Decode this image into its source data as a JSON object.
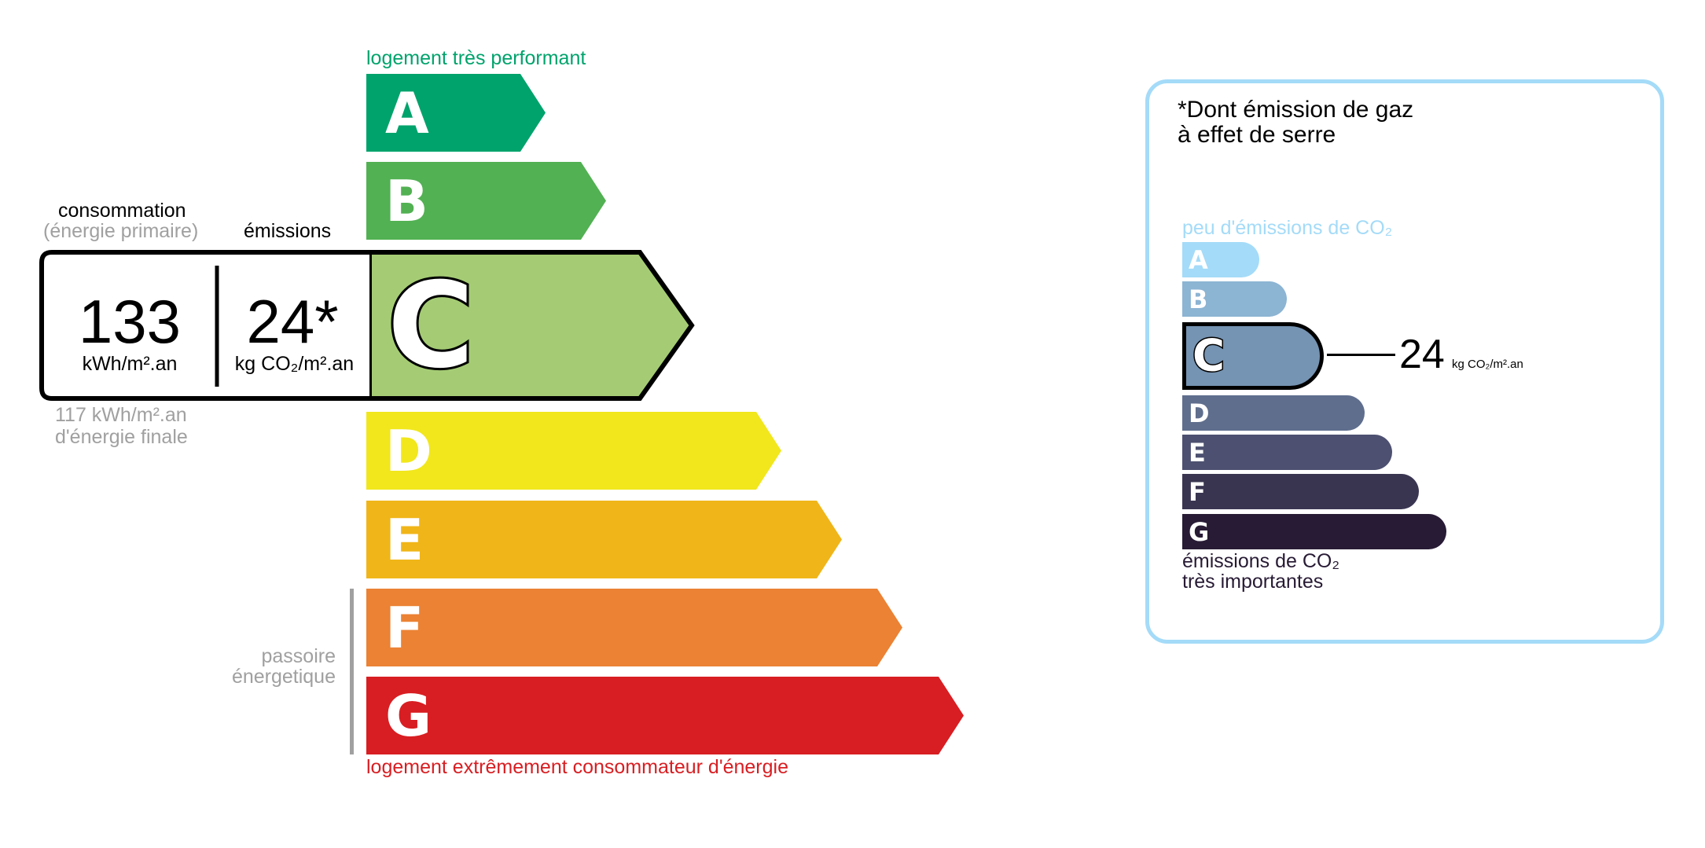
{
  "energy": {
    "top_label": "logement très performant",
    "bottom_label": "logement extrêmement consommateur d'énergie",
    "passoire_label_1": "passoire",
    "passoire_label_2": "énergetique",
    "classes": [
      {
        "letter": "A",
        "color": "#00a36c"
      },
      {
        "letter": "B",
        "color": "#52b153"
      },
      {
        "letter": "C",
        "color": "#a5cc74"
      },
      {
        "letter": "D",
        "color": "#f1e71c"
      },
      {
        "letter": "E",
        "color": "#f0b518"
      },
      {
        "letter": "F",
        "color": "#eb8234"
      },
      {
        "letter": "G",
        "color": "#d81e22"
      }
    ],
    "current_class": "C",
    "consumption_header": "consommation",
    "consumption_subheader": "(énergie primaire)",
    "emissions_header": "émissions",
    "consumption_value": "133",
    "consumption_unit": "kWh/m².an",
    "emissions_value": "24*",
    "emissions_unit": "kg CO₂/m².an",
    "final_energy_value": "117 kWh/m².an",
    "final_energy_label": "d'énergie finale",
    "top_color": "#00a36c",
    "bottom_color": "#d81e22"
  },
  "ghg": {
    "title_1": "*Dont émission de gaz",
    "title_2": "à effet de serre",
    "top_label": "peu d'émissions de CO₂",
    "bottom_label_1": "émissions de CO₂",
    "bottom_label_2": "très importantes",
    "classes": [
      {
        "letter": "A",
        "color": "#a4dbf8"
      },
      {
        "letter": "B",
        "color": "#8cb4d3"
      },
      {
        "letter": "C",
        "color": "#7593b2"
      },
      {
        "letter": "D",
        "color": "#5f6e8d"
      },
      {
        "letter": "E",
        "color": "#4d5070"
      },
      {
        "letter": "F",
        "color": "#393551"
      },
      {
        "letter": "G",
        "color": "#281b35"
      }
    ],
    "current_class": "C",
    "value": "24",
    "unit": "kg CO₂/m².an",
    "border_color": "#a4dbf8"
  }
}
